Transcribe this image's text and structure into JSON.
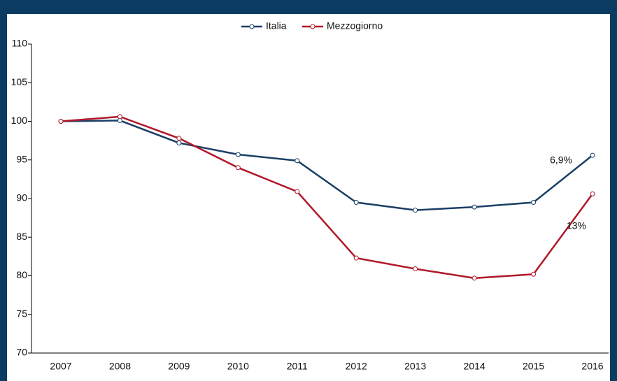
{
  "chart_data": {
    "type": "line",
    "categories": [
      "2007",
      "2008",
      "2009",
      "2010",
      "2011",
      "2012",
      "2013",
      "2014",
      "2015",
      "2016"
    ],
    "series": [
      {
        "name": "Italia",
        "color": "#1b3f66",
        "values": [
          100,
          100.1,
          97.2,
          95.7,
          94.9,
          89.5,
          88.5,
          88.9,
          89.5,
          95.6
        ]
      },
      {
        "name": "Mezzogiorno",
        "color": "#b0182a",
        "values": [
          100,
          100.6,
          97.8,
          94.0,
          90.9,
          82.3,
          80.9,
          79.7,
          80.2,
          90.6
        ]
      }
    ],
    "ylim": [
      70,
      110
    ],
    "yticks": [
      70,
      75,
      80,
      85,
      90,
      95,
      100,
      105,
      110
    ],
    "grid": false,
    "legend": "top",
    "annotations": [
      {
        "text": "6,9%"
      },
      {
        "text": "13%"
      }
    ]
  }
}
